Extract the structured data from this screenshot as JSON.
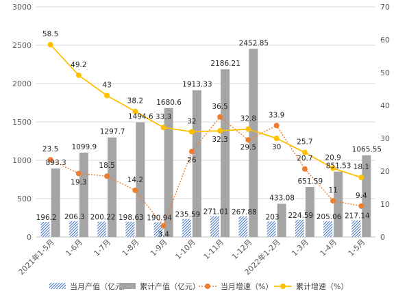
{
  "chart_data": {
    "type": "bar+line",
    "categories": [
      "2021年1-5月",
      "1-6月",
      "1-7月",
      "1-8月",
      "1-9月",
      "1-10月",
      "1-11月",
      "1-12月",
      "2022年1-2月",
      "1-3月",
      "1-4月",
      "1-5月"
    ],
    "left_axis": {
      "ylim": [
        0,
        3000
      ],
      "ticks": [
        0,
        500,
        1000,
        1500,
        2000,
        2500,
        3000
      ]
    },
    "right_axis": {
      "ylim": [
        0,
        70
      ],
      "ticks": [
        0,
        10,
        20,
        30,
        40,
        50,
        60,
        70
      ]
    },
    "series": [
      {
        "name": "当月产值（亿元）",
        "type": "bar",
        "axis": "left",
        "pattern": "hatched-blue",
        "color": "#4472C4",
        "values": [
          196.2,
          206.3,
          200.22,
          198.63,
          190.94,
          235.59,
          271.01,
          267.88,
          203,
          224.59,
          205.06,
          217.14
        ],
        "labels": [
          "196.2",
          "206.3",
          "200.22",
          "198.63",
          "190.94",
          "235.59",
          "271.01",
          "267.88",
          "203",
          "224.59",
          "205.06",
          "217.14"
        ]
      },
      {
        "name": "累计产值（亿元）",
        "type": "bar",
        "axis": "left",
        "color": "#A5A5A5",
        "values": [
          893.3,
          1099.9,
          1297.7,
          1494.6,
          1680.6,
          1913.33,
          2186.21,
          2452.85,
          433.08,
          651.59,
          851.53,
          1065.55
        ],
        "labels": [
          "893.3",
          "1099.9",
          "1297.7",
          "1494.6",
          "1680.6",
          "1913.33",
          "2186.21",
          "2452.85",
          "433.08",
          "651.59",
          "851.53",
          "1065.55"
        ]
      },
      {
        "name": "当月增速（%）",
        "type": "line",
        "axis": "right",
        "dashed": true,
        "color": "#ED7D31",
        "values": [
          23.5,
          19.3,
          18.5,
          14.2,
          3.4,
          26,
          36.5,
          29.5,
          33.9,
          20.7,
          11,
          9.4
        ],
        "labels": [
          "23.5",
          "19.3",
          "18.5",
          "14.2",
          "3.4",
          "26",
          "36.5",
          "29.5",
          "33.9",
          "20.7",
          "11",
          "9.4"
        ]
      },
      {
        "name": "累计增速（%）",
        "type": "line",
        "axis": "right",
        "color": "#FFC000",
        "values": [
          58.5,
          49.2,
          43,
          38.2,
          33.3,
          32,
          32.3,
          32.8,
          30,
          25.7,
          20.9,
          18.1
        ],
        "labels": [
          "58.5",
          "49.2",
          "43",
          "38.2",
          "33.3",
          "32",
          "32.3",
          "32.8",
          "30",
          "25.7",
          "20.9",
          "18.1"
        ]
      }
    ],
    "grid": true,
    "legend": "bottom"
  }
}
